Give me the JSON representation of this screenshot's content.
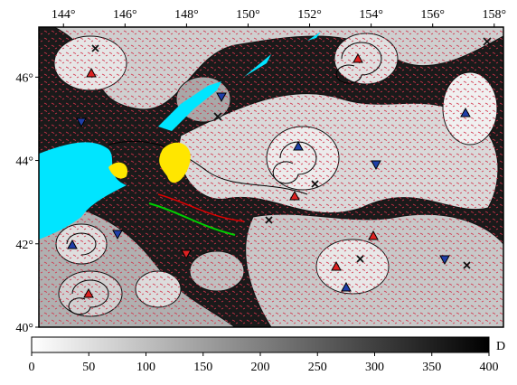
{
  "map": {
    "lonlim": [
      143.2,
      158.3
    ],
    "latlim": [
      40,
      47.2
    ],
    "lon_ticks": [
      {
        "value": 144,
        "label": "144°"
      },
      {
        "value": 146,
        "label": "146°"
      },
      {
        "value": 148,
        "label": "148°"
      },
      {
        "value": 150,
        "label": "150°"
      },
      {
        "value": 152,
        "label": "152°"
      },
      {
        "value": 154,
        "label": "154°"
      },
      {
        "value": 156,
        "label": "156°"
      },
      {
        "value": 158,
        "label": "158°"
      }
    ],
    "lat_ticks": [
      {
        "value": 40,
        "label": "40°"
      },
      {
        "value": 42,
        "label": "42°"
      },
      {
        "value": 44,
        "label": "44°"
      },
      {
        "value": 46,
        "label": "46°"
      }
    ]
  },
  "colorbar": {
    "label": "D",
    "range": [
      0,
      400
    ],
    "ticks": [
      0,
      50,
      100,
      150,
      200,
      250,
      300,
      350,
      400
    ]
  }
}
